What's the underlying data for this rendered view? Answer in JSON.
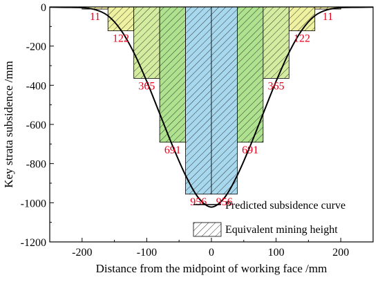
{
  "chart_data": {
    "type": "bar",
    "xlabel": "Distance from the midpoint of working face /mm",
    "ylabel": "Key strata subsidence /mm",
    "xlim": [
      -250,
      250
    ],
    "ylim": [
      -1200,
      0
    ],
    "x_ticks": [
      -200,
      -100,
      0,
      100,
      200
    ],
    "x_tick_labels": [
      "-200",
      "-100",
      "0",
      "100",
      "200"
    ],
    "y_ticks": [
      0,
      -200,
      -400,
      -600,
      -800,
      -1000,
      -1200
    ],
    "y_tick_labels": [
      "0",
      "-200",
      "-400",
      "-600",
      "-800",
      "-1000",
      "-1200"
    ],
    "legend_position": "bottom-right",
    "legend": [
      {
        "label": "Predicted subsidence curve",
        "kind": "line"
      },
      {
        "label": "Equivalent mining height",
        "kind": "hatched-bar"
      }
    ],
    "bars": [
      {
        "x0": -200,
        "x1": -160,
        "value": -11,
        "label": "11",
        "color": "#f6f1a6"
      },
      {
        "x0": -160,
        "x1": -120,
        "value": -122,
        "label": "122",
        "color": "#eef1a0"
      },
      {
        "x0": -120,
        "x1": -80,
        "value": -365,
        "label": "365",
        "color": "#d3ec9f"
      },
      {
        "x0": -80,
        "x1": -40,
        "value": -691,
        "label": "691",
        "color": "#aee28f"
      },
      {
        "x0": -40,
        "x1": 0,
        "value": -956,
        "label": "956",
        "color": "#a8d8ee"
      },
      {
        "x0": 0,
        "x1": 40,
        "value": -956,
        "label": "956",
        "color": "#a8d8ee"
      },
      {
        "x0": 40,
        "x1": 80,
        "value": -691,
        "label": "691",
        "color": "#aee28f"
      },
      {
        "x0": 80,
        "x1": 120,
        "value": -365,
        "label": "365",
        "color": "#d3ec9f"
      },
      {
        "x0": 120,
        "x1": 160,
        "value": -122,
        "label": "122",
        "color": "#eef1a0"
      },
      {
        "x0": 160,
        "x1": 200,
        "value": -11,
        "label": "11",
        "color": "#f6f1a6"
      }
    ],
    "series": [
      {
        "name": "Predicted subsidence curve",
        "color": "#000000",
        "points": [
          [
            -250,
            -1
          ],
          [
            -225,
            -2
          ],
          [
            -200,
            -4
          ],
          [
            -180,
            -14
          ],
          [
            -160,
            -45
          ],
          [
            -140,
            -118
          ],
          [
            -120,
            -233
          ],
          [
            -100,
            -380
          ],
          [
            -80,
            -545
          ],
          [
            -60,
            -710
          ],
          [
            -40,
            -860
          ],
          [
            -20,
            -975
          ],
          [
            0,
            -1022
          ],
          [
            20,
            -975
          ],
          [
            40,
            -860
          ],
          [
            60,
            -710
          ],
          [
            80,
            -545
          ],
          [
            100,
            -380
          ],
          [
            120,
            -233
          ],
          [
            140,
            -118
          ],
          [
            160,
            -45
          ],
          [
            180,
            -14
          ],
          [
            200,
            -4
          ],
          [
            225,
            -2
          ],
          [
            250,
            -1
          ]
        ]
      }
    ],
    "label_color": "#e8001c"
  }
}
